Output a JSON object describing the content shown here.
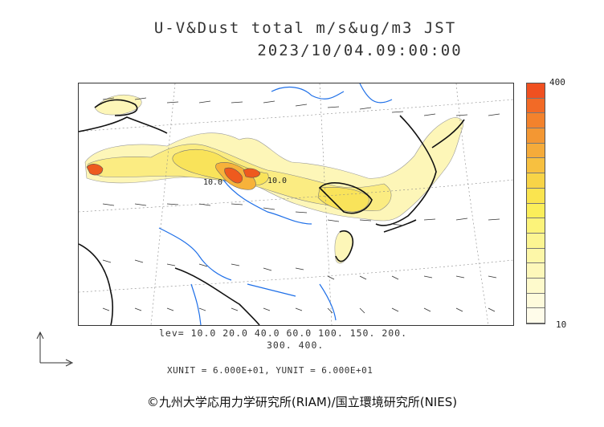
{
  "title_line1": "U-V&Dust total m/s&ug/m3 JST",
  "title_line2": "2023/10/04.09:00:00",
  "colorbar": {
    "max_label": "400",
    "min_label": "10",
    "colors": [
      "#f05020",
      "#f26a26",
      "#f3822c",
      "#f39733",
      "#f5ab3a",
      "#f7c040",
      "#f8d447",
      "#fae44f",
      "#fbee5a",
      "#fcf37a",
      "#fcf592",
      "#fdf7a8",
      "#fdf8ba",
      "#fefacc",
      "#fefbdc",
      "#fffcea"
    ]
  },
  "legend": {
    "lev_line1": "lev= 10.0 20.0 40.0 60.0 100. 150. 200.",
    "lev_line2": "300. 400."
  },
  "units_text": "XUNIT = 6.000E+01, YUNIT = 6.000E+01",
  "copyright": "©九州大学応用力学研究所(RIAM)/国立環境研究所(NIES)",
  "contour_labels": [
    "10.0",
    "10.0"
  ],
  "map_colors": {
    "coast": "#111111",
    "river": "#1e6fe8",
    "grid": "#888888",
    "vector": "#333333",
    "dust_low": "#fdf6b8",
    "dust_mid": "#f9e35a",
    "dust_high": "#f7b23a",
    "dust_peak": "#ee5a1e"
  }
}
